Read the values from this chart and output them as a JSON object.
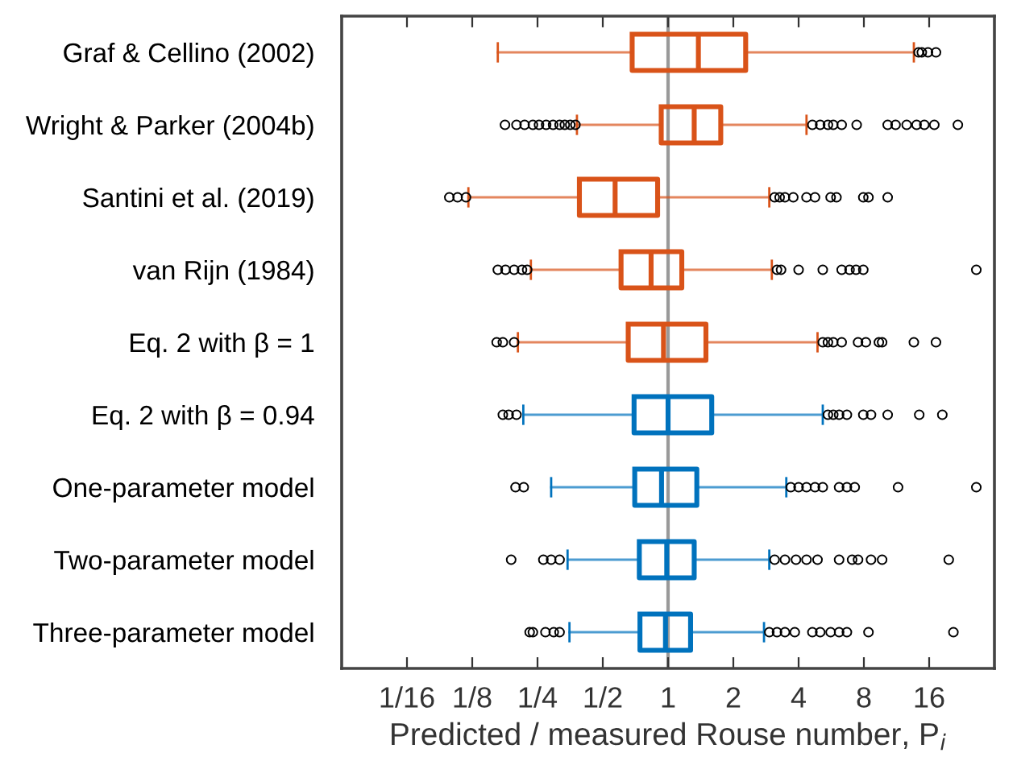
{
  "chart_data": {
    "type": "box",
    "orientation": "horizontal",
    "log": "x",
    "xlabel": "Predicted / measured Rouse number, P$_{i}$",
    "categories": [
      "Graf & Cellino (2002)",
      "Wright & Parker (2004b)",
      "Santini et al. (2019)",
      "van Rijn (1984)",
      "Eq. 2 with β = 1",
      "Eq. 2 with β = 0.94",
      "One-parameter model",
      "Two-parameter model",
      "Three-parameter model"
    ],
    "colors": [
      "#d95319",
      "#d95319",
      "#d95319",
      "#d95319",
      "#d95319",
      "#0072bd",
      "#0072bd",
      "#0072bd",
      "#0072bd"
    ],
    "boxes": [
      {
        "low": 0.164,
        "q1": 0.683,
        "median": 1.38,
        "q3": 2.28,
        "high": 13.6,
        "outliers": [
          14.3,
          14.8,
          15.8,
          17.2
        ]
      },
      {
        "low": 0.38,
        "q1": 0.93,
        "median": 1.32,
        "q3": 1.75,
        "high": 4.35,
        "outliers": [
          0.177,
          0.2,
          0.218,
          0.238,
          0.254,
          0.274,
          0.295,
          0.316,
          0.334,
          0.354,
          0.374,
          4.63,
          5.03,
          5.46,
          5.78,
          6.32,
          7.41,
          10.3,
          11.2,
          12.6,
          14.0,
          15.2,
          16.9,
          21.7
        ]
      },
      {
        "low": 0.12,
        "q1": 0.39,
        "median": 0.57,
        "q3": 0.895,
        "high": 2.93,
        "outliers": [
          0.098,
          0.107,
          0.117,
          3.1,
          3.27,
          3.46,
          3.78,
          4.35,
          4.76,
          5.62,
          5.98,
          7.95,
          8.4,
          10.3
        ]
      },
      {
        "low": 0.233,
        "q1": 0.607,
        "median": 0.835,
        "q3": 1.157,
        "high": 3.01,
        "outliers": [
          0.164,
          0.178,
          0.195,
          0.212,
          0.224,
          3.18,
          3.32,
          4.0,
          5.17,
          6.32,
          6.87,
          7.36,
          7.95,
          26.4
        ]
      },
      {
        "low": 0.203,
        "q1": 0.655,
        "median": 0.953,
        "q3": 1.495,
        "high": 4.89,
        "outliers": [
          0.162,
          0.173,
          0.195,
          5.17,
          5.46,
          5.78,
          6.32,
          7.52,
          8.17,
          9.38,
          9.71,
          13.6,
          17.2
        ]
      },
      {
        "low": 0.215,
        "q1": 0.697,
        "median": 1.0,
        "q3": 1.59,
        "high": 5.17,
        "outliers": [
          0.173,
          0.184,
          0.2,
          5.46,
          5.78,
          6.15,
          6.68,
          7.95,
          8.63,
          10.3,
          14.4,
          18.4
        ]
      },
      {
        "low": 0.289,
        "q1": 0.702,
        "median": 0.933,
        "q3": 1.357,
        "high": 3.51,
        "outliers": [
          0.198,
          0.216,
          3.68,
          4.0,
          4.35,
          4.76,
          5.17,
          6.15,
          6.68,
          7.26,
          11.5,
          26.4
        ]
      },
      {
        "low": 0.344,
        "q1": 0.737,
        "median": 0.986,
        "q3": 1.32,
        "high": 2.93,
        "outliers": [
          0.189,
          0.266,
          0.289,
          0.316,
          3.1,
          3.46,
          3.89,
          4.35,
          4.89,
          6.15,
          7.06,
          7.52,
          8.63,
          9.71,
          19.7
        ]
      },
      {
        "low": 0.351,
        "q1": 0.742,
        "median": 0.973,
        "q3": 1.27,
        "high": 2.77,
        "outliers": [
          0.23,
          0.238,
          0.272,
          0.297,
          0.316,
          2.93,
          3.18,
          3.46,
          3.84,
          4.63,
          5.03,
          5.62,
          6.15,
          6.68,
          8.4,
          20.7
        ]
      }
    ],
    "xlim": [
      0.03125,
      32
    ],
    "xticks": [
      {
        "value": 0.0625,
        "label": "1/16"
      },
      {
        "value": 0.125,
        "label": "1/8"
      },
      {
        "value": 0.25,
        "label": "1/4"
      },
      {
        "value": 0.5,
        "label": "1/2"
      },
      1,
      2,
      4,
      8,
      16
    ],
    "ref_lines": [
      {
        "axis": "x",
        "value": 1,
        "color": "#999999"
      }
    ],
    "grid": false,
    "legend": false
  }
}
